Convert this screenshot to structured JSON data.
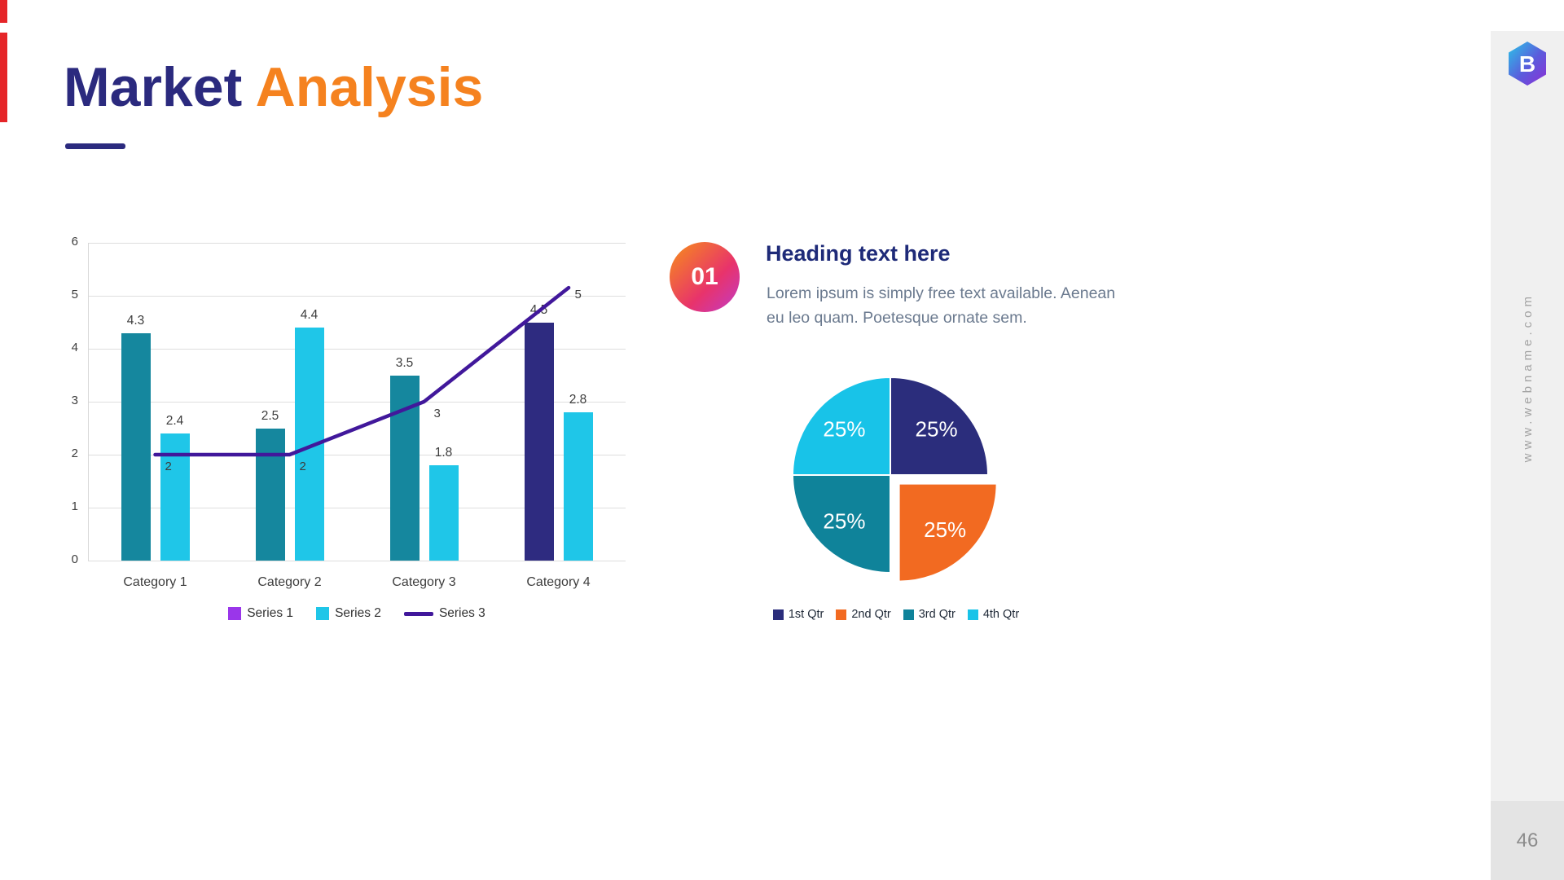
{
  "slide": {
    "title_part1": "Market",
    "title_part2": "Analysis",
    "website": "www.webname.com",
    "page_number": "46"
  },
  "logo": {
    "letter": "B"
  },
  "content": {
    "badge_number": "01",
    "heading": "Heading text here",
    "body_line1": "Lorem ipsum is simply free text available. Aenean",
    "body_line2": "eu leo quam. Poetesque ornate sem."
  },
  "chart_data": [
    {
      "type": "bar",
      "categories": [
        "Category 1",
        "Category 2",
        "Category 3",
        "Category 4"
      ],
      "series": [
        {
          "name": "Series 1",
          "render": "bar",
          "values": [
            4.3,
            2.5,
            3.5,
            4.5
          ],
          "bar_colors": [
            "#15879e",
            "#15879e",
            "#15879e",
            "#2e2b80"
          ],
          "legend_color": "#9a36ea"
        },
        {
          "name": "Series 2",
          "render": "bar",
          "values": [
            2.4,
            4.4,
            1.8,
            2.8
          ],
          "bar_colors": [
            "#1fc6e8",
            "#1fc6e8",
            "#1fc6e8",
            "#1fc6e8"
          ],
          "legend_color": "#1fc6e8"
        },
        {
          "name": "Series 3",
          "render": "line",
          "values": [
            2,
            2,
            3,
            5
          ],
          "color": "#41189b"
        }
      ],
      "ylim": [
        0,
        6
      ],
      "yticks": [
        0,
        1,
        2,
        3,
        4,
        5,
        6
      ],
      "grid": true,
      "legend_position": "bottom"
    },
    {
      "type": "pie",
      "labels": [
        "1st Qtr",
        "2nd Qtr",
        "3rd Qtr",
        "4th Qtr"
      ],
      "values": [
        25,
        25,
        25,
        25
      ],
      "data_labels": [
        "25%",
        "25%",
        "25%",
        "25%"
      ],
      "colors": [
        "#2b2d7c",
        "#f26a21",
        "#0f839a",
        "#18c3e8"
      ],
      "exploded_index": 1,
      "legend_position": "bottom"
    }
  ],
  "theme": {
    "title_navy": "#2b2a7e",
    "title_orange": "#f5821f",
    "accent_red": "#e52528",
    "heading_navy": "#1e2a78",
    "line_purple": "#41189b",
    "sidebar_gray": "#f0f0f0"
  }
}
